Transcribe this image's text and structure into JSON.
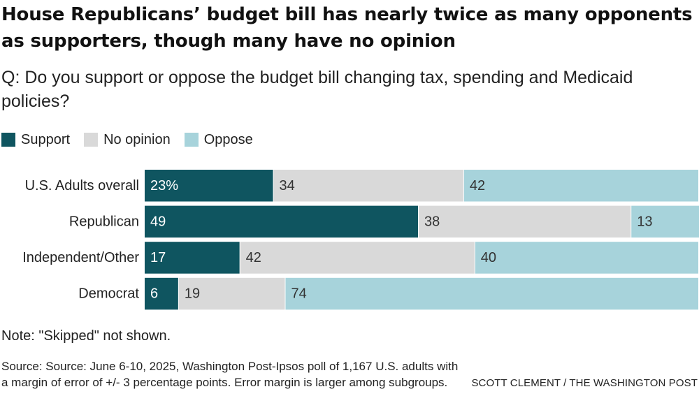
{
  "title": "House Republicans’ budget bill has nearly twice as many opponents as supporters, though many have no opinion",
  "subtitle": "Q: Do you support or oppose the budget bill changing tax, spending and Medicaid policies?",
  "legend": [
    {
      "label": "Support",
      "color": "#0f5560"
    },
    {
      "label": "No opinion",
      "color": "#d9d9d9"
    },
    {
      "label": "Oppose",
      "color": "#a7d3db"
    }
  ],
  "chart_data": {
    "type": "bar",
    "orientation": "horizontal",
    "stacked": true,
    "title": "House Republicans’ budget bill has nearly twice as many opponents as supporters, though many have no opinion",
    "categories": [
      "U.S. Adults overall",
      "Republican",
      "Independent/Other",
      "Democrat"
    ],
    "series": [
      {
        "name": "Support",
        "color": "#0f5560",
        "label_color": "#ffffff",
        "values": [
          23,
          49,
          17,
          6
        ],
        "labels": [
          "23%",
          "49",
          "17",
          "6"
        ]
      },
      {
        "name": "No opinion",
        "color": "#d9d9d9",
        "label_color": "#333333",
        "values": [
          34,
          38,
          42,
          19
        ],
        "labels": [
          "34",
          "38",
          "42",
          "19"
        ]
      },
      {
        "name": "Oppose",
        "color": "#a7d3db",
        "label_color": "#333333",
        "values": [
          42,
          13,
          40,
          74
        ],
        "labels": [
          "42",
          "13",
          "40",
          "74"
        ]
      }
    ],
    "xlim": [
      0,
      99
    ],
    "unit": "%"
  },
  "note": "Note: \"Skipped\" not shown.",
  "source": "Source: Source: June 6-10, 2025, Washington Post-Ipsos poll of 1,167 U.S. adults with a margin of error of +/- 3 percentage points. Error margin is larger among subgroups.",
  "credit": "SCOTT CLEMENT / THE WASHINGTON POST"
}
